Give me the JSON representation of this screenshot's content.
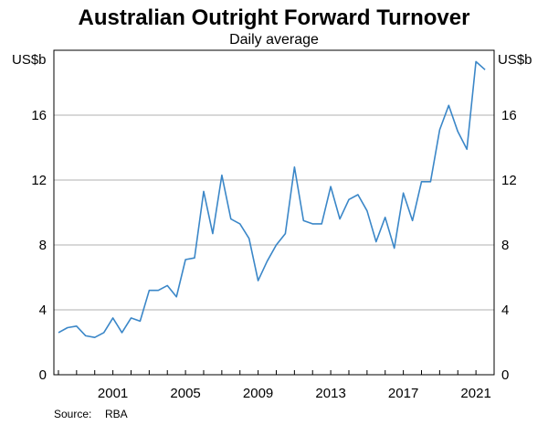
{
  "chart_data": {
    "type": "line",
    "title": "Australian Outright Forward Turnover",
    "subtitle": "Daily average",
    "ylabel_left": "US$b",
    "ylabel_right": "US$b",
    "source_label": "Source:",
    "source_value": "RBA",
    "ylim": [
      0,
      20
    ],
    "yticks": [
      0,
      4,
      8,
      12,
      16
    ],
    "xlim": [
      1997.75,
      2022.0
    ],
    "xticks": [
      2001,
      2005,
      2009,
      2013,
      2017,
      2021
    ],
    "grid": true,
    "series": [
      {
        "color": "#3b87c8",
        "x": [
          1998.0,
          1998.5,
          1999.0,
          1999.5,
          2000.0,
          2000.5,
          2001.0,
          2001.5,
          2002.0,
          2002.5,
          2003.0,
          2003.5,
          2004.0,
          2004.5,
          2005.0,
          2005.5,
          2006.0,
          2006.5,
          2007.0,
          2007.5,
          2008.0,
          2008.5,
          2009.0,
          2009.5,
          2010.0,
          2010.5,
          2011.0,
          2011.5,
          2012.0,
          2012.5,
          2013.0,
          2013.5,
          2014.0,
          2014.5,
          2015.0,
          2015.5,
          2016.0,
          2016.5,
          2017.0,
          2017.5,
          2018.0,
          2018.5,
          2019.0,
          2019.5,
          2020.0,
          2020.5,
          2021.0,
          2021.5
        ],
        "y": [
          2.6,
          2.9,
          3.0,
          2.4,
          2.3,
          2.6,
          3.5,
          2.6,
          3.5,
          3.3,
          5.2,
          5.2,
          5.5,
          4.8,
          7.1,
          7.2,
          11.3,
          8.7,
          12.3,
          9.6,
          9.3,
          8.4,
          5.8,
          7.0,
          8.0,
          8.7,
          12.8,
          9.5,
          9.3,
          9.3,
          11.6,
          9.6,
          10.8,
          11.1,
          10.1,
          8.2,
          9.7,
          7.8,
          11.2,
          9.5,
          11.9,
          11.9,
          15.1,
          16.6,
          15.0,
          13.9,
          19.3,
          18.8
        ]
      }
    ]
  }
}
